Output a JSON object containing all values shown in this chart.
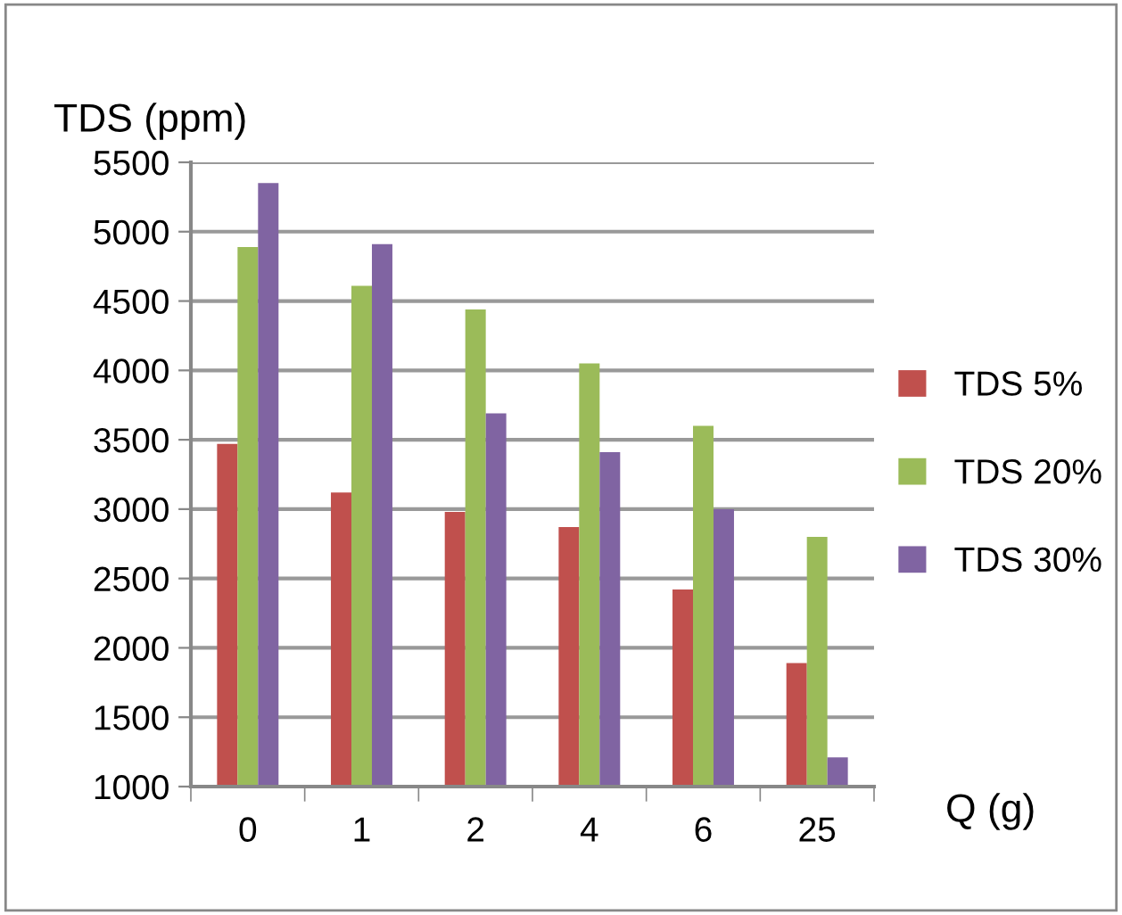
{
  "chart_data": {
    "type": "bar",
    "xlabel": "Q (g)",
    "ylabel": "TDS (ppm)",
    "categories": [
      "0",
      "1",
      "2",
      "4",
      "6",
      "25"
    ],
    "series": [
      {
        "name": "TDS 5%",
        "color": "#c0504d",
        "values": [
          3470,
          3120,
          2980,
          2870,
          2420,
          1890
        ]
      },
      {
        "name": "TDS 20%",
        "color": "#9bbb59",
        "values": [
          4890,
          4610,
          4440,
          4050,
          3600,
          2800
        ]
      },
      {
        "name": "TDS 30%",
        "color": "#8064a2",
        "values": [
          5350,
          4910,
          3690,
          3410,
          3000,
          1210
        ]
      }
    ],
    "ylim": [
      1000,
      5500
    ],
    "yticks": [
      1000,
      1500,
      2000,
      2500,
      3000,
      3500,
      4000,
      4500,
      5000,
      5500
    ],
    "grid": "y",
    "legend": "right"
  }
}
